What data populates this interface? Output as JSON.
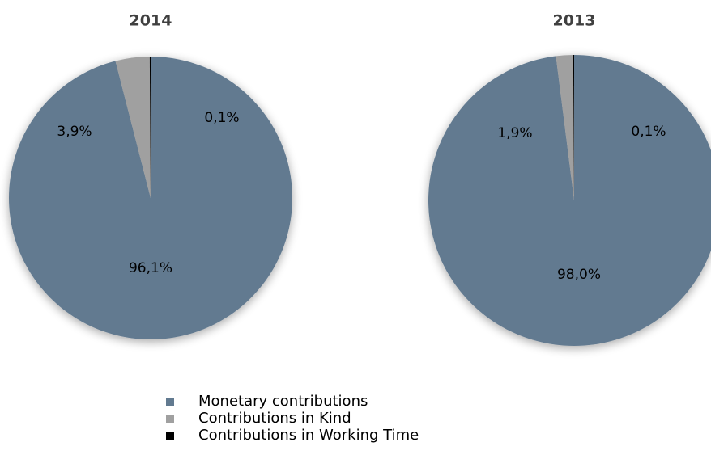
{
  "chart_data": [
    {
      "type": "pie",
      "title": "2014",
      "categories": [
        "Monetary contributions",
        "Contributions in Kind",
        "Contributions in Working Time"
      ],
      "values": [
        96.1,
        3.9,
        0.1
      ],
      "value_labels": [
        "96,1%",
        "3,9%",
        "0,1%"
      ],
      "colors": [
        "#627a90",
        "#a0a0a0",
        "#000000"
      ]
    },
    {
      "type": "pie",
      "title": "2013",
      "categories": [
        "Monetary contributions",
        "Contributions in Kind",
        "Contributions in Working Time"
      ],
      "values": [
        98.0,
        1.9,
        0.1
      ],
      "value_labels": [
        "98,0%",
        "1,9%",
        "0,1%"
      ],
      "colors": [
        "#627a90",
        "#a0a0a0",
        "#000000"
      ]
    }
  ]
}
